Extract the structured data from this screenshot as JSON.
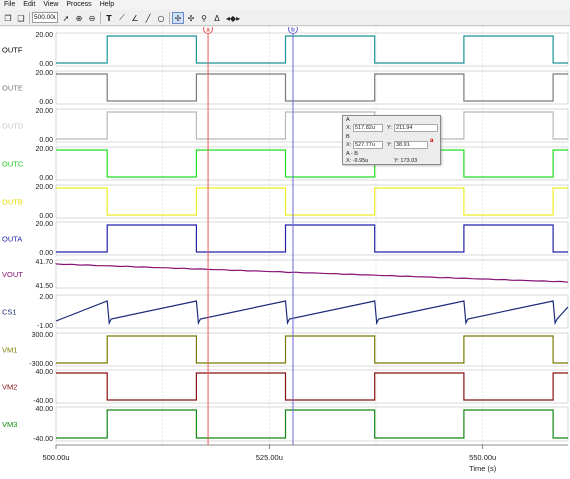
{
  "menu": [
    "File",
    "Edit",
    "View",
    "Process",
    "Help"
  ],
  "toolbar": {
    "time_value": "500.00u",
    "icons": [
      "copy-icon",
      "paste-icon",
      "pointer-icon",
      "zoom-in-icon",
      "zoom-out-icon",
      "text-tool-icon",
      "line-tool-icon",
      "angle-tool-icon",
      "line-icon",
      "circle-icon",
      "cursor-a-icon",
      "cursor-b-icon",
      "probe-icon",
      "delta-icon",
      "navigate-icon"
    ]
  },
  "traces": [
    {
      "name": "OUTF",
      "color": "#1a9494",
      "label_color": "#000000",
      "top": "20.00",
      "bottom": "0.00",
      "kind": "square",
      "high": 20,
      "low": 0,
      "phase": 1
    },
    {
      "name": "OUTE",
      "color": "#7a7a7a",
      "label_color": "#7a7a7a",
      "top": "20.00",
      "bottom": "0.00",
      "kind": "square",
      "high": 20,
      "low": 0,
      "phase": 0
    },
    {
      "name": "OUTD",
      "color": "#b8b8b8",
      "label_color": "#c8c8c8",
      "top": "20.00",
      "bottom": "0.00",
      "kind": "square",
      "high": 20,
      "low": 0,
      "phase": 1
    },
    {
      "name": "OUTC",
      "color": "#22dd22",
      "label_color": "#22cc22",
      "top": "20.00",
      "bottom": "0.00",
      "kind": "square",
      "high": 20,
      "low": 0,
      "phase": 0
    },
    {
      "name": "OUTB",
      "color": "#eeee22",
      "label_color": "#e8d800",
      "top": "20.00",
      "bottom": "0.00",
      "kind": "square",
      "high": 20,
      "low": 0,
      "phase": 0
    },
    {
      "name": "OUTA",
      "color": "#2222aa",
      "label_color": "#2222aa",
      "top": "20.00",
      "bottom": "0.00",
      "kind": "square",
      "high": 20,
      "low": 0,
      "phase": 1
    },
    {
      "name": "VOUT",
      "color": "#881177",
      "label_color": "#881177",
      "top": "41.70",
      "bottom": "41.50",
      "kind": "ramp"
    },
    {
      "name": "CS1",
      "color": "#1a2a7a",
      "label_color": "#1a2a7a",
      "top": "2.00",
      "bottom": "-1.00",
      "kind": "saw"
    },
    {
      "name": "VM1",
      "color": "#7a7a00",
      "label_color": "#7a7a00",
      "top": "300.00",
      "bottom": "-300.00",
      "kind": "square",
      "high": 300,
      "low": -300,
      "phase": 1
    },
    {
      "name": "VM2",
      "color": "#881111",
      "label_color": "#881111",
      "top": "40.00",
      "bottom": "-40.00",
      "kind": "square",
      "high": 40,
      "low": -40,
      "phase": 0
    },
    {
      "name": "VM3",
      "color": "#118811",
      "label_color": "#118811",
      "top": "40.00",
      "bottom": "-40.00",
      "kind": "square",
      "high": 40,
      "low": -40,
      "phase": 1
    }
  ],
  "x_axis": {
    "ticks": [
      "500.00u",
      "525.00u",
      "550.00u"
    ],
    "label": "Time (s)"
  },
  "cursors": {
    "a_label": "a",
    "b_label": "b",
    "a_color": "#e85a5a",
    "b_color": "#6a6ad8"
  },
  "readout": {
    "a_head": "A",
    "a_x_label": "X:",
    "a_x": "517.82u",
    "a_y_label": "Y:",
    "a_y": "211.94",
    "b_head": "B",
    "b_x_label": "X:",
    "b_x": "527.77u",
    "b_y_label": "Y:",
    "b_y": "38.91",
    "diff_head": "A - B",
    "diff_x": "X: -9.95u",
    "diff_y": "Y: 173.03",
    "trace_tag": "a"
  }
}
